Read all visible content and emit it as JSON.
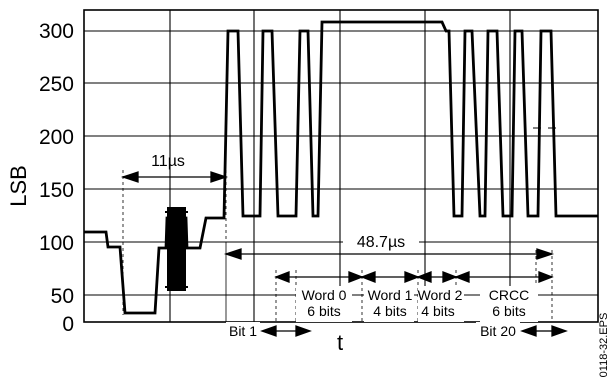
{
  "figure": {
    "ylabel": "LSB",
    "xlabel": "t",
    "file_code": "0118-32.EPS",
    "y_ticks": [
      "300",
      "250",
      "200",
      "150",
      "100",
      "50",
      "0"
    ],
    "annotations": {
      "burst_span": "11µs",
      "data_span": "48.7µs",
      "bit1": "Bit 1",
      "bit20": "Bit 20",
      "word0_name": "Word 0",
      "word0_bits": "6 bits",
      "word1_name": "Word 1",
      "word1_bits": "4 bits",
      "word2_name": "Word 2",
      "word2_bits": "4 bits",
      "crcc_name": "CRCC",
      "crcc_bits": "6 bits"
    }
  }
}
